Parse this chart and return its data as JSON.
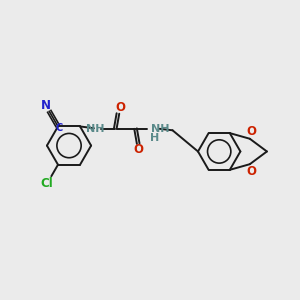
{
  "background_color": "#ebebeb",
  "bond_color": "#1a1a1a",
  "bond_lw": 1.4,
  "atom_colors": {
    "N": "#2222cc",
    "O": "#cc2200",
    "Cl": "#22aa22",
    "C_nitrile": "#2222cc",
    "H_label": "#5a8a8a"
  },
  "figsize": [
    3.0,
    3.0
  ],
  "dpi": 100,
  "xlim": [
    0,
    10
  ],
  "ylim": [
    0,
    10
  ]
}
